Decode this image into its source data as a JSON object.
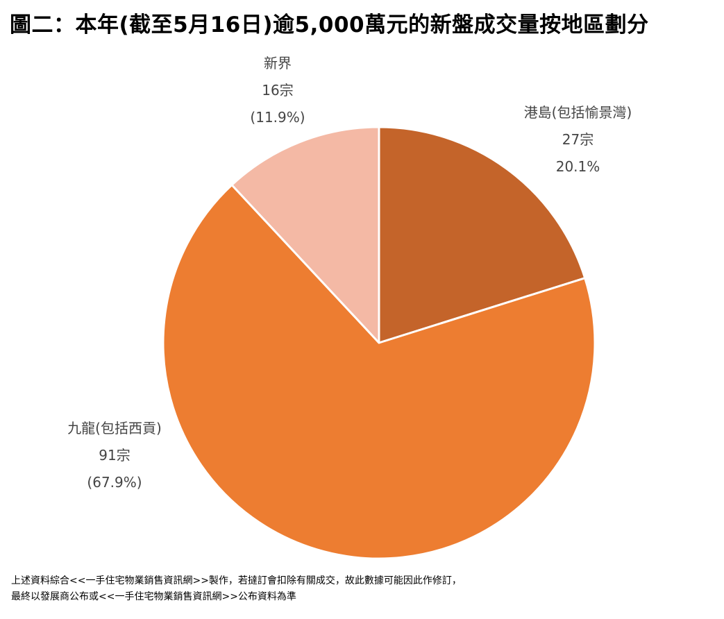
{
  "title": "圖二：本年(截至5月16日)逾5,000萬元的新盤成交量按地區劃分",
  "chart_data": {
    "type": "pie",
    "title": "圖二：本年(截至5月16日)逾5,000萬元的新盤成交量按地區劃分",
    "slices": [
      {
        "name": "港島(包括愉景灣)",
        "count_label": "27宗",
        "pct_label": "20.1%",
        "count": 27,
        "percent": 20.1,
        "color": "#C4642A"
      },
      {
        "name": "九龍(包括西貢)",
        "count_label": "91宗",
        "pct_label": "(67.9%)",
        "count": 91,
        "percent": 67.9,
        "color": "#ED7D31"
      },
      {
        "name": "新界",
        "count_label": "16宗",
        "pct_label": "(11.9%)",
        "count": 16,
        "percent": 11.9,
        "color": "#F4B9A5"
      }
    ]
  },
  "footnote": {
    "line1": "上述資料綜合<<一手住宅物業銷售資訊網>>製作，若撻訂會扣除有關成交，故此數據可能因此作修訂，",
    "line2": "最終以發展商公布或<<一手住宅物業銷售資訊網>>公布資料為準"
  }
}
